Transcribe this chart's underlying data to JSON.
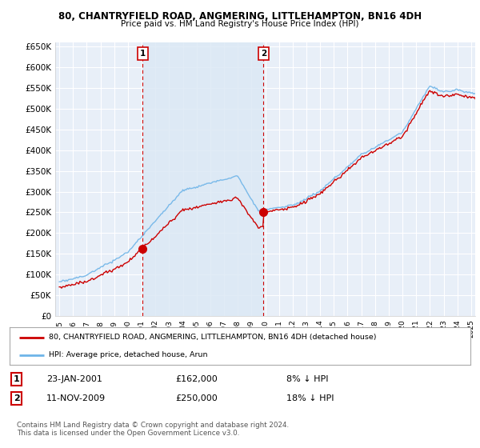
{
  "title": "80, CHANTRYFIELD ROAD, ANGMERING, LITTLEHAMPTON, BN16 4DH",
  "subtitle": "Price paid vs. HM Land Registry's House Price Index (HPI)",
  "legend_line1": "80, CHANTRYFIELD ROAD, ANGMERING, LITTLEHAMPTON, BN16 4DH (detached house)",
  "legend_line2": "HPI: Average price, detached house, Arun",
  "annotation1_label": "1",
  "annotation1_date": "23-JAN-2001",
  "annotation1_price": "£162,000",
  "annotation1_hpi": "8% ↓ HPI",
  "annotation2_label": "2",
  "annotation2_date": "11-NOV-2009",
  "annotation2_price": "£250,000",
  "annotation2_hpi": "18% ↓ HPI",
  "copyright": "Contains HM Land Registry data © Crown copyright and database right 2024.\nThis data is licensed under the Open Government Licence v3.0.",
  "sale1_year": 2001.06,
  "sale1_value": 162000,
  "sale2_year": 2009.87,
  "sale2_value": 250000,
  "hpi_color": "#6EB4E8",
  "sale_color": "#CC0000",
  "bg_fill_color": "#DCE9F5",
  "plot_bg": "#E8EFF8",
  "grid_color": "#FFFFFF",
  "ylim": [
    0,
    660000
  ],
  "xlim_start": 1994.7,
  "xlim_end": 2025.3,
  "yticks": [
    0,
    50000,
    100000,
    150000,
    200000,
    250000,
    300000,
    350000,
    400000,
    450000,
    500000,
    550000,
    600000,
    650000
  ]
}
